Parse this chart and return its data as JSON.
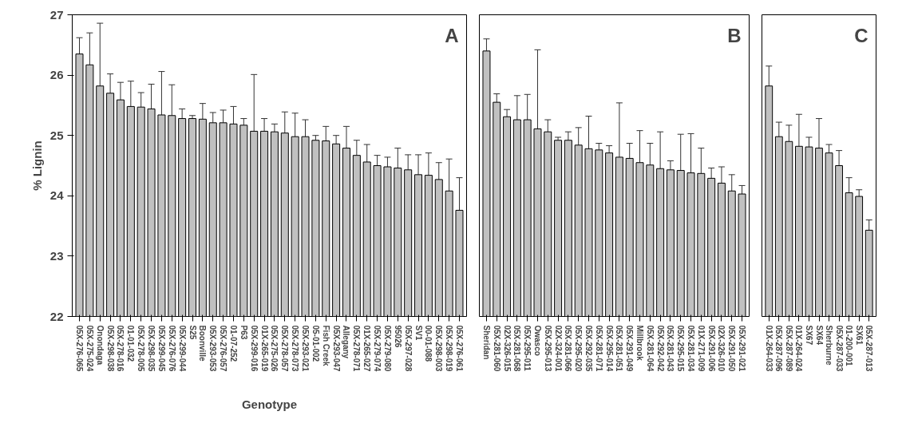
{
  "chart_data": [
    {
      "type": "bar",
      "ylabel": "% Lignin",
      "xlabel": "Genotype",
      "color": "#c0c0c0",
      "ylim": [
        22,
        27
      ],
      "yticks": [
        22,
        23,
        24,
        25,
        26,
        27
      ],
      "annotations": [
        "A"
      ],
      "categories": [
        "05X-276-065",
        "05X-275-024",
        "Onondaga",
        "05X-298-038",
        "05X-278-016",
        "01-01-032",
        "05X-278-005",
        "05X-298-035",
        "05X-299-045",
        "05X-276-076",
        "05X-299-044",
        "S25",
        "Boonville",
        "05X-293-053",
        "05X-276-057",
        "01-07-252",
        "P63",
        "05X-299-016",
        "01X-265-019",
        "05X-275-026",
        "05X-278-057",
        "05X-278-073",
        "05X-293-021",
        "05-01-002",
        "Fish Creek",
        "05X-293-047",
        "Allegany",
        "05X-278-071",
        "01X-265-027",
        "05X-279-074",
        "05X-279-080",
        "95026",
        "05X-297-028",
        "SV1",
        "00-01-088",
        "05X-298-003",
        "05X-298-019",
        "05X-276-061"
      ],
      "values": [
        26.35,
        26.17,
        25.82,
        25.7,
        25.59,
        25.48,
        25.47,
        25.44,
        25.34,
        25.33,
        25.28,
        25.28,
        25.27,
        25.21,
        25.21,
        25.19,
        25.17,
        25.07,
        25.07,
        25.06,
        25.04,
        24.98,
        24.98,
        24.92,
        24.91,
        24.86,
        24.79,
        24.67,
        24.56,
        24.5,
        24.48,
        24.46,
        24.43,
        24.35,
        24.34,
        24.27,
        24.08,
        23.76
      ],
      "errors": [
        [
          26.35,
          26.62
        ],
        [
          26.17,
          26.7
        ],
        [
          25.82,
          26.86
        ],
        [
          25.7,
          26.02
        ],
        [
          25.59,
          25.88
        ],
        [
          25.48,
          25.9
        ],
        [
          25.47,
          25.71
        ],
        [
          25.44,
          25.85
        ],
        [
          25.34,
          26.06
        ],
        [
          25.33,
          25.84
        ],
        [
          25.28,
          25.44
        ],
        [
          25.28,
          25.33
        ],
        [
          25.27,
          25.53
        ],
        [
          25.21,
          25.38
        ],
        [
          25.21,
          25.42
        ],
        [
          25.19,
          25.48
        ],
        [
          25.17,
          25.28
        ],
        [
          25.07,
          26.01
        ],
        [
          25.07,
          25.28
        ],
        [
          25.06,
          25.19
        ],
        [
          25.04,
          25.39
        ],
        [
          24.98,
          25.37
        ],
        [
          24.98,
          25.26
        ],
        [
          24.92,
          25.0
        ],
        [
          24.91,
          25.15
        ],
        [
          24.86,
          25.0
        ],
        [
          24.79,
          25.15
        ],
        [
          24.67,
          24.92
        ],
        [
          24.56,
          24.85
        ],
        [
          24.5,
          24.67
        ],
        [
          24.48,
          24.64
        ],
        [
          24.46,
          24.79
        ],
        [
          24.43,
          24.68
        ],
        [
          24.35,
          24.68
        ],
        [
          24.34,
          24.71
        ],
        [
          24.27,
          24.55
        ],
        [
          24.08,
          24.61
        ],
        [
          23.76,
          24.3
        ]
      ]
    },
    {
      "type": "bar",
      "color": "#c0c0c0",
      "ylim": [
        22,
        27
      ],
      "yticks": [
        22,
        23,
        24,
        25,
        26,
        27
      ],
      "tick_labels": "x",
      "annotations": [
        "B"
      ],
      "categories": [
        "Sheridan",
        "05X-281-060",
        "02X-326-015",
        "05X-281-068",
        "05X-295-011",
        "Owasco",
        "05X-295-013",
        "02X-324-001",
        "05X-281-066",
        "05X-295-020",
        "05X-292-035",
        "05X-281-071",
        "05X-295-014",
        "05X-281-051",
        "05X-291-049",
        "Millbrook",
        "05X-281-064",
        "05X-292-042",
        "05X-281-043",
        "05X-295-015",
        "05X-281-034",
        "01X-271-009",
        "05X-291-006",
        "02X-326-010",
        "05X-291-050",
        "05X-291-021"
      ],
      "values": [
        26.4,
        25.55,
        25.31,
        25.26,
        25.26,
        25.11,
        25.06,
        24.92,
        24.92,
        24.84,
        24.78,
        24.76,
        24.71,
        24.64,
        24.62,
        24.55,
        24.51,
        24.45,
        24.43,
        24.42,
        24.38,
        24.37,
        24.29,
        24.21,
        24.08,
        24.03
      ],
      "errors": [
        [
          26.4,
          26.6
        ],
        [
          25.55,
          25.69
        ],
        [
          25.31,
          25.43
        ],
        [
          25.26,
          25.66
        ],
        [
          25.26,
          25.68
        ],
        [
          25.11,
          26.42
        ],
        [
          25.06,
          25.26
        ],
        [
          24.92,
          24.97
        ],
        [
          24.92,
          25.06
        ],
        [
          24.84,
          25.13
        ],
        [
          24.78,
          25.32
        ],
        [
          24.76,
          24.87
        ],
        [
          24.71,
          24.83
        ],
        [
          24.64,
          25.54
        ],
        [
          24.62,
          24.87
        ],
        [
          24.55,
          25.08
        ],
        [
          24.51,
          24.87
        ],
        [
          24.45,
          25.06
        ],
        [
          24.43,
          24.58
        ],
        [
          24.42,
          25.02
        ],
        [
          24.38,
          25.03
        ],
        [
          24.37,
          24.79
        ],
        [
          24.29,
          24.46
        ],
        [
          24.21,
          24.48
        ],
        [
          24.08,
          24.35
        ],
        [
          24.03,
          24.17
        ]
      ]
    },
    {
      "type": "bar",
      "color": "#c0c0c0",
      "ylim": [
        22,
        27
      ],
      "yticks": [
        22,
        23,
        24,
        25,
        26,
        27
      ],
      "tick_labels": "x",
      "annotations": [
        "C"
      ],
      "categories": [
        "01X-264-033",
        "05X-287-096",
        "05X-287-089",
        "01X-264-024",
        "SX67",
        "SX64",
        "Sherburne",
        "05X-287-033",
        "01-200-001",
        "SX61",
        "05X-287-013"
      ],
      "values": [
        25.82,
        24.98,
        24.9,
        24.82,
        24.81,
        24.79,
        24.71,
        24.5,
        24.05,
        23.99,
        23.43
      ],
      "errors": [
        [
          25.82,
          26.15
        ],
        [
          24.98,
          25.22
        ],
        [
          24.9,
          25.17
        ],
        [
          24.82,
          25.35
        ],
        [
          24.81,
          24.97
        ],
        [
          24.79,
          25.28
        ],
        [
          24.71,
          24.85
        ],
        [
          24.5,
          24.75
        ],
        [
          24.05,
          24.3
        ],
        [
          23.99,
          24.1
        ],
        [
          23.43,
          23.6
        ]
      ]
    }
  ]
}
